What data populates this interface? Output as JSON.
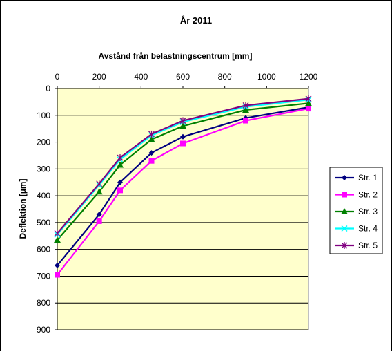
{
  "chart_data": {
    "type": "line",
    "title": "År 2011",
    "xlabel": "Avstånd från belastningscentrum  [mm]",
    "ylabel": "Deflektion [µm]",
    "xlim": [
      0,
      1200
    ],
    "ylim": [
      0,
      900
    ],
    "y_inverted": true,
    "x_axis_position": "top",
    "xticks": [
      0,
      200,
      400,
      600,
      800,
      1000,
      1200
    ],
    "yticks": [
      0,
      100,
      200,
      300,
      400,
      500,
      600,
      700,
      800,
      900
    ],
    "grid": "horizontal",
    "plot_background": "#FFFFCC",
    "legend_position": "right",
    "x": [
      0,
      200,
      300,
      450,
      600,
      900,
      1200
    ],
    "series": [
      {
        "name": "Str. 1",
        "color": "#000080",
        "marker": "diamond",
        "values": [
          660,
          470,
          350,
          240,
          180,
          110,
          70
        ]
      },
      {
        "name": "Str. 2",
        "color": "#FF00FF",
        "marker": "square",
        "values": [
          695,
          495,
          380,
          270,
          205,
          120,
          75
        ]
      },
      {
        "name": "Str. 3",
        "color": "#008000",
        "marker": "triangle",
        "values": [
          565,
          385,
          285,
          190,
          140,
          80,
          55
        ]
      },
      {
        "name": "Str. 4",
        "color": "#00FFFF",
        "marker": "x",
        "values": [
          545,
          360,
          265,
          175,
          125,
          68,
          42
        ]
      },
      {
        "name": "Str. 5",
        "color": "#800080",
        "marker": "star",
        "values": [
          540,
          355,
          258,
          170,
          120,
          63,
          38
        ]
      }
    ]
  }
}
